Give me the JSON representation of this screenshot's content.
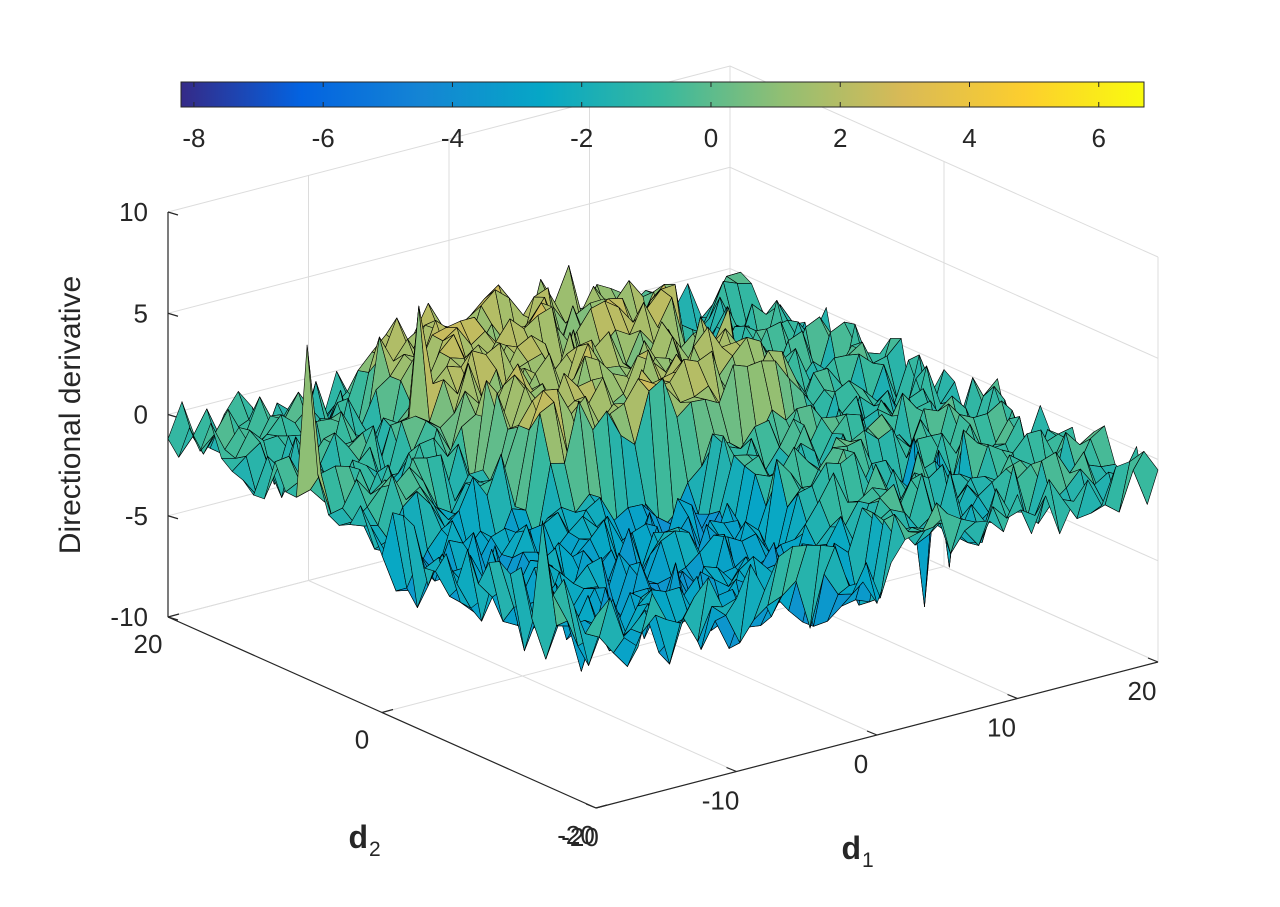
{
  "chart_data": {
    "type": "surface",
    "title": "",
    "xlabel": "d₁",
    "ylabel": "d₂",
    "zlabel": "Directional derivative",
    "xlim": [
      -20,
      20
    ],
    "ylim": [
      -20,
      20
    ],
    "zlim": [
      -10,
      10
    ],
    "x_ticks": [
      -20,
      -10,
      0,
      10,
      20
    ],
    "y_ticks": [
      -20,
      0,
      20
    ],
    "z_ticks": [
      -10,
      -5,
      0,
      5,
      10
    ],
    "x_tick_labels": [
      "-20",
      "-10",
      "0",
      "10",
      "20"
    ],
    "y_tick_labels": [
      "-20",
      "0",
      "20"
    ],
    "z_tick_labels": [
      "-10",
      "-5",
      "0",
      "5",
      "10"
    ],
    "colorbar": {
      "position": "top",
      "colormap": "parula",
      "range": [
        -8.2,
        6.7
      ],
      "ticks": [
        -8,
        -6,
        -4,
        -2,
        0,
        2,
        4,
        6
      ],
      "tick_labels": [
        "-8",
        "-6",
        "-4",
        "-2",
        "0",
        "2",
        "4",
        "6"
      ]
    },
    "surface": {
      "grid": {
        "x": [
          -20,
          20
        ],
        "y": [
          -20,
          20
        ],
        "n": 41
      },
      "regions": [
        {
          "name": "plateau",
          "center": [
            1,
            9
          ],
          "half_width": [
            9,
            9
          ],
          "level": 1.5
        },
        {
          "name": "depression",
          "center": [
            -9,
            -9
          ],
          "half_width": [
            10,
            10
          ],
          "level": -3.0
        },
        {
          "name": "base",
          "level": -1.0
        }
      ],
      "noise_amplitude": 1.6,
      "notable_peaks": [
        {
          "x": -20,
          "y": 7,
          "z": 6.5
        },
        {
          "x": -20,
          "y": -15,
          "z": 3.0
        },
        {
          "x": 0,
          "y": -20,
          "z": -3.5
        },
        {
          "x": -9,
          "y": 11,
          "z": 5.5
        }
      ],
      "notable_troughs": [
        {
          "x": 11,
          "y": -10,
          "z": -8.0
        },
        {
          "x": 12,
          "y": -11,
          "z": -6.0
        }
      ]
    },
    "grid": true
  }
}
